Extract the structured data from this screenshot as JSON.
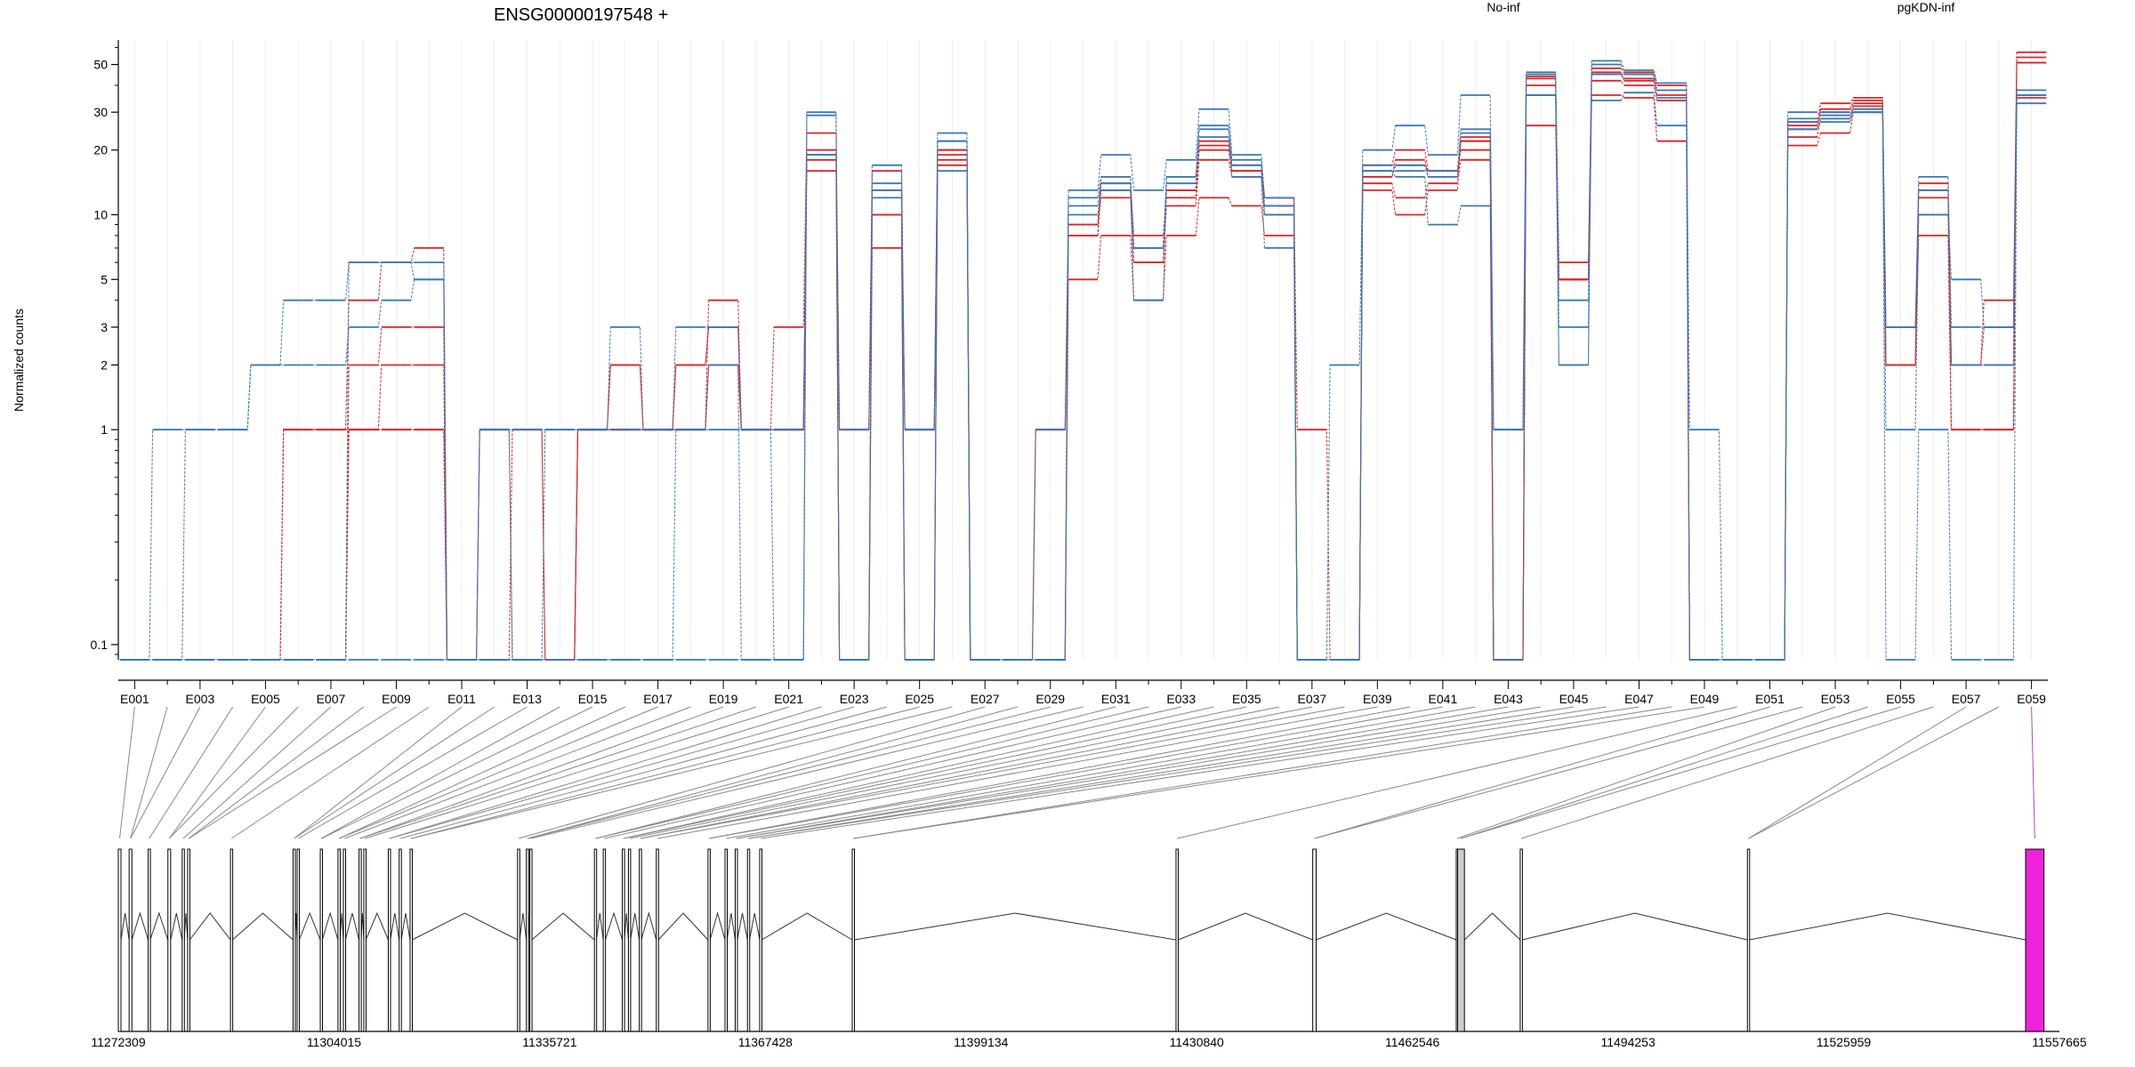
{
  "chart_data": {
    "type": "line",
    "title": "ENSG00000197548 +",
    "ylabel": "Normalized counts",
    "xlabel": "",
    "y_scale": "log",
    "ylim": [
      0.085,
      65
    ],
    "y_ticks": [
      {
        "value": 0.1,
        "label": "0.1"
      },
      {
        "value": 1,
        "label": "1"
      },
      {
        "value": 2,
        "label": "2"
      },
      {
        "value": 3,
        "label": "3"
      },
      {
        "value": 5,
        "label": "5"
      },
      {
        "value": 10,
        "label": "10"
      },
      {
        "value": 20,
        "label": "20"
      },
      {
        "value": 30,
        "label": "30"
      },
      {
        "value": 50,
        "label": "50"
      }
    ],
    "grid": "vertical minor, light",
    "legend": {
      "placement": "top-right",
      "entries": [
        {
          "name": "No-inf",
          "color": "#d62728"
        },
        {
          "name": "pgKDN-inf",
          "color": "#3b78b5"
        }
      ]
    },
    "exons": [
      "E001",
      "E002",
      "E003",
      "E004",
      "E005",
      "E006",
      "E007",
      "E008",
      "E009",
      "E010",
      "E011",
      "E012",
      "E013",
      "E014",
      "E015",
      "E016",
      "E017",
      "E018",
      "E019",
      "E020",
      "E021",
      "E022",
      "E023",
      "E024",
      "E025",
      "E026",
      "E027",
      "E028",
      "E029",
      "E030",
      "E031",
      "E032",
      "E033",
      "E034",
      "E035",
      "E036",
      "E037",
      "E038",
      "E039",
      "E040",
      "E041",
      "E042",
      "E043",
      "E044",
      "E045",
      "E046",
      "E047",
      "E048",
      "E049",
      "E050",
      "E051",
      "E052",
      "E053",
      "E054",
      "E055",
      "E056",
      "E057",
      "E058",
      "E059"
    ],
    "exon_tick_labels": [
      "E001",
      "E003",
      "E005",
      "E007",
      "E009",
      "E011",
      "E013",
      "E015",
      "E017",
      "E019",
      "E021",
      "E023",
      "E025",
      "E027",
      "E029",
      "E031",
      "E033",
      "E035",
      "E037",
      "E039",
      "E041",
      "E043",
      "E045",
      "E047",
      "E049",
      "E051",
      "E053",
      "E055",
      "E057",
      "E059"
    ],
    "series": [
      {
        "name": "No-inf",
        "color": "#d62728",
        "values": [
          0.08,
          0.08,
          0.08,
          0.08,
          0.08,
          1,
          1,
          1,
          1,
          1,
          0.08,
          1,
          1,
          0.08,
          1,
          2,
          1,
          2,
          3,
          1,
          3,
          24,
          1,
          16,
          1,
          19,
          0.08,
          0.08,
          1,
          9,
          15,
          7,
          13,
          22,
          17,
          12,
          1,
          0.08,
          17,
          20,
          16,
          20,
          0.08,
          44,
          5,
          48,
          46,
          40,
          0.08,
          0.08,
          0.08,
          27,
          33,
          35,
          2,
          14,
          2,
          2,
          54
        ]
      },
      {
        "name": "No-inf",
        "color": "#d62728",
        "values": [
          0.08,
          0.08,
          0.08,
          0.08,
          0.08,
          0.08,
          0.08,
          1,
          1,
          1,
          0.08,
          0.08,
          0.08,
          0.08,
          1,
          1,
          1,
          1,
          2,
          1,
          1,
          18,
          0.08,
          10,
          0.08,
          18,
          0.08,
          0.08,
          0.08,
          8,
          13,
          6,
          11,
          18,
          15,
          10,
          0.08,
          0.08,
          14,
          12,
          14,
          18,
          0.08,
          36,
          5,
          42,
          40,
          34,
          0.08,
          0.08,
          0.08,
          23,
          28,
          32,
          2,
          10,
          1,
          1,
          51
        ]
      },
      {
        "name": "No-inf",
        "color": "#d62728",
        "values": [
          0.08,
          0.08,
          0.08,
          0.08,
          0.08,
          0.08,
          0.08,
          2,
          3,
          3,
          0.08,
          1,
          0.08,
          0.08,
          1,
          2,
          1,
          2,
          3,
          1,
          1,
          20,
          1,
          13,
          1,
          20,
          0.08,
          0.08,
          1,
          8,
          14,
          8,
          12,
          20,
          16,
          12,
          0.08,
          0.08,
          15,
          17,
          16,
          22,
          0.08,
          40,
          6,
          45,
          42,
          36,
          0.08,
          0.08,
          0.08,
          25,
          30,
          33,
          3,
          12,
          2,
          3,
          51
        ]
      },
      {
        "name": "No-inf",
        "color": "#d62728",
        "values": [
          0.08,
          0.08,
          0.08,
          0.08,
          0.08,
          0.08,
          0.08,
          1,
          2,
          2,
          0.08,
          0.08,
          0.08,
          0.08,
          1,
          1,
          1,
          1,
          2,
          1,
          1,
          16,
          0.08,
          7,
          0.08,
          17,
          0.08,
          0.08,
          0.08,
          5,
          8,
          4,
          8,
          12,
          11,
          8,
          0.08,
          0.08,
          13,
          10,
          13,
          23,
          0.08,
          26,
          5,
          36,
          35,
          22,
          0.08,
          0.08,
          0.08,
          21,
          24,
          30,
          2,
          8,
          1,
          1,
          35
        ]
      },
      {
        "name": "No-inf",
        "color": "#d62728",
        "values": [
          0.08,
          0.08,
          0.08,
          0.08,
          0.08,
          1,
          1,
          4,
          6,
          7,
          0.08,
          0.08,
          1,
          0.08,
          1,
          1,
          1,
          1,
          4,
          1,
          1,
          19,
          0.08,
          10,
          0.08,
          20,
          0.08,
          0.08,
          0.08,
          9,
          12,
          6,
          13,
          21,
          16,
          11,
          0.08,
          0.08,
          15,
          18,
          15,
          22,
          0.08,
          43,
          5,
          46,
          43,
          38,
          0.08,
          0.08,
          0.08,
          26,
          31,
          34,
          2,
          13,
          2,
          4,
          57
        ]
      },
      {
        "name": "pgKDN-inf",
        "color": "#3b78b5",
        "values": [
          0.08,
          0.08,
          0.08,
          0.08,
          0.08,
          0.08,
          0.08,
          0.08,
          0.08,
          0.08,
          0.08,
          0.08,
          0.08,
          0.08,
          0.08,
          0.08,
          0.08,
          0.08,
          0.08,
          0.08,
          0.08,
          30,
          0.08,
          17,
          0.08,
          24,
          0.08,
          0.08,
          0.08,
          13,
          19,
          13,
          18,
          31,
          19,
          12,
          0.08,
          0.08,
          20,
          26,
          19,
          36,
          1,
          46,
          4,
          52,
          47,
          41,
          0.08,
          0.08,
          0.08,
          30,
          30,
          30,
          3,
          15,
          3,
          3,
          36
        ]
      },
      {
        "name": "pgKDN-inf",
        "color": "#3b78b5",
        "values": [
          0.08,
          1,
          1,
          1,
          2,
          4,
          4,
          6,
          6,
          6,
          0.08,
          1,
          0.08,
          1,
          1,
          1,
          1,
          1,
          1,
          1,
          0.08,
          29,
          0.08,
          14,
          1,
          22,
          0.08,
          0.08,
          0.08,
          12,
          15,
          7,
          15,
          26,
          17,
          11,
          0.08,
          2,
          17,
          17,
          15,
          24,
          1,
          45,
          2,
          50,
          45,
          38,
          1,
          0.08,
          0.08,
          28,
          29,
          31,
          3,
          13,
          2,
          2,
          38
        ]
      },
      {
        "name": "pgKDN-inf",
        "color": "#3b78b5",
        "values": [
          0.08,
          0.08,
          1,
          1,
          2,
          2,
          2,
          3,
          4,
          5,
          0.08,
          1,
          1,
          1,
          1,
          3,
          1,
          3,
          3,
          1,
          1,
          19,
          1,
          13,
          1,
          22,
          0.08,
          0.08,
          1,
          11,
          14,
          7,
          14,
          25,
          18,
          10,
          0.08,
          0.08,
          16,
          16,
          16,
          25,
          1,
          36,
          2,
          45,
          45,
          35,
          0.08,
          0.08,
          0.08,
          25,
          27,
          30,
          1,
          10,
          5,
          3,
          36
        ]
      },
      {
        "name": "pgKDN-inf",
        "color": "#3b78b5",
        "values": [
          0.08,
          0.08,
          0.08,
          0.08,
          0.08,
          0.08,
          0.08,
          6,
          6,
          5,
          0.08,
          0.08,
          0.08,
          0.08,
          0.08,
          0.08,
          0.08,
          1,
          2,
          0.08,
          0.08,
          19,
          0.08,
          12,
          0.08,
          16,
          0.08,
          0.08,
          0.08,
          10,
          13,
          4,
          15,
          23,
          15,
          7,
          0.08,
          0.08,
          16,
          15,
          9,
          11,
          0.08,
          36,
          3,
          34,
          37,
          26,
          0.08,
          0.08,
          0.08,
          27,
          28,
          31,
          0.08,
          1,
          0.08,
          0.08,
          33
        ]
      }
    ],
    "genomic_axis": {
      "ticks": [
        "11272309",
        "11304015",
        "11335721",
        "11367428",
        "11399134",
        "11430840",
        "11462546",
        "11494253",
        "11525959",
        "11557665"
      ],
      "range": [
        11272309,
        11557665
      ]
    },
    "exon_model": {
      "starts": [
        11272309,
        11273900,
        11276700,
        11279600,
        11281700,
        11282500,
        11288800,
        11298000,
        11298600,
        11302000,
        11304600,
        11305400,
        11307700,
        11308400,
        11312000,
        11313600,
        11315200,
        11331000,
        11332300,
        11332800,
        11342300,
        11343600,
        11346400,
        11347300,
        11348900,
        11351400,
        11359000,
        11361500,
        11363000,
        11364800,
        11366600,
        11380200,
        11427800,
        11447900,
        11469000,
        11469200,
        11478400,
        11511800,
        11552700
      ],
      "ends": [
        11272700,
        11274300,
        11277000,
        11280000,
        11282000,
        11282800,
        11289100,
        11298300,
        11298900,
        11302300,
        11304900,
        11305700,
        11308000,
        11308700,
        11312300,
        11313900,
        11315500,
        11331300,
        11332600,
        11333100,
        11342600,
        11343900,
        11346700,
        11347600,
        11349200,
        11351700,
        11359300,
        11361800,
        11363300,
        11365100,
        11366900,
        11380500,
        11428100,
        11448400,
        11469200,
        11470200,
        11478700,
        11512100,
        11555400
      ],
      "highlighted": [
        "E059"
      ],
      "highlight_color": "#ee22dd",
      "alt_color": "#cccccc"
    }
  }
}
